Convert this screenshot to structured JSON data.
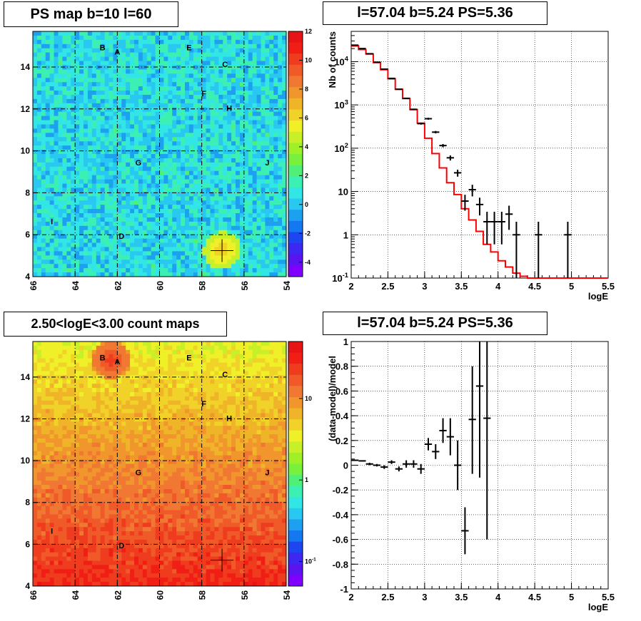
{
  "chart_data": [
    {
      "type": "heatmap",
      "title": "PS map b=10 l=60",
      "x_ticks": [
        "66",
        "64",
        "62",
        "60",
        "58",
        "56",
        "54"
      ],
      "xlim": [
        66,
        54
      ],
      "y_ticks": [
        "4",
        "6",
        "8",
        "10",
        "12",
        "14"
      ],
      "ylim": [
        4,
        15.7
      ],
      "grid": true,
      "colorscale": {
        "ticks": [
          "12",
          "10",
          "8",
          "6",
          "4",
          "2",
          "0",
          "-2",
          "-4"
        ],
        "range": [
          -5,
          12
        ],
        "scale": "linear"
      },
      "source_labels": [
        {
          "text": "B",
          "l": 62.7,
          "b": 14.8
        },
        {
          "text": "A",
          "l": 62.0,
          "b": 14.6
        },
        {
          "text": "E",
          "l": 58.6,
          "b": 14.8
        },
        {
          "text": "C",
          "l": 56.9,
          "b": 14.0
        },
        {
          "text": "F",
          "l": 57.9,
          "b": 12.6
        },
        {
          "text": "H",
          "l": 56.7,
          "b": 11.9
        },
        {
          "text": "G",
          "l": 61.0,
          "b": 9.3
        },
        {
          "text": "J",
          "l": 54.9,
          "b": 9.3
        },
        {
          "text": "I",
          "l": 65.1,
          "b": 6.5
        },
        {
          "text": "D",
          "l": 61.8,
          "b": 5.8
        }
      ],
      "marker": {
        "l": 57.04,
        "b": 5.24
      }
    },
    {
      "type": "line",
      "title": "l=57.04 b=5.24 PS=5.36",
      "xlabel": "logE",
      "ylabel": "Nb of counts",
      "xlim": [
        2,
        5.5
      ],
      "ylim": [
        0.1,
        50000
      ],
      "yscale": "log",
      "x_ticks": [
        "2",
        "2.5",
        "3",
        "3.5",
        "4",
        "4.5",
        "5",
        "5.5"
      ],
      "y_ticks": [
        "10^{-1}",
        "1",
        "10",
        "10^{2}",
        "10^{3}",
        "10^{4}"
      ],
      "grid": true,
      "series": [
        {
          "color": "#ff0000",
          "kind": "step",
          "bin_edges": [
            2,
            2.1,
            2.2,
            2.3,
            2.4,
            2.5,
            2.6,
            2.7,
            2.8,
            2.9,
            3.0,
            3.1,
            3.2,
            3.3,
            3.4,
            3.5,
            3.6,
            3.7,
            3.8,
            3.9,
            4.0,
            4.1,
            4.2,
            4.3,
            4.4,
            4.5,
            4.6,
            4.7,
            4.8,
            4.9,
            5.0,
            5.1,
            5.2,
            5.3,
            5.4,
            5.5
          ],
          "values": [
            23000,
            19000,
            15000,
            9500,
            6500,
            4000,
            2300,
            1400,
            780,
            380,
            170,
            75,
            35,
            16,
            8.5,
            4,
            2.2,
            1.2,
            0.6,
            0.4,
            0.25,
            0.18,
            0.13,
            0.11,
            0.1,
            0.1,
            0.1,
            0.1,
            0.1,
            0.1,
            0.1,
            0.1,
            0.1,
            0.1,
            0.1
          ]
        },
        {
          "color": "#000000",
          "kind": "errorbars",
          "points": [
            {
              "x": 2.05,
              "y": 24000,
              "lo": 23700,
              "hi": 24300
            },
            {
              "x": 2.15,
              "y": 20000,
              "lo": 19700,
              "hi": 20300
            },
            {
              "x": 2.25,
              "y": 15200,
              "lo": 15000,
              "hi": 15400
            },
            {
              "x": 2.35,
              "y": 9700,
              "lo": 9500,
              "hi": 9900
            },
            {
              "x": 2.45,
              "y": 6700,
              "lo": 6500,
              "hi": 6900
            },
            {
              "x": 2.55,
              "y": 4100,
              "lo": 4000,
              "hi": 4200
            },
            {
              "x": 2.65,
              "y": 2300,
              "lo": 2250,
              "hi": 2350
            },
            {
              "x": 2.75,
              "y": 1420,
              "lo": 1380,
              "hi": 1460
            },
            {
              "x": 2.85,
              "y": 790,
              "lo": 760,
              "hi": 820
            },
            {
              "x": 2.95,
              "y": 370,
              "lo": 350,
              "hi": 390
            },
            {
              "x": 3.05,
              "y": 480,
              "lo": 455,
              "hi": 505
            },
            {
              "x": 3.15,
              "y": 235,
              "lo": 220,
              "hi": 250
            },
            {
              "x": 3.25,
              "y": 115,
              "lo": 105,
              "hi": 125
            },
            {
              "x": 3.35,
              "y": 60,
              "lo": 52,
              "hi": 68
            },
            {
              "x": 3.45,
              "y": 27,
              "lo": 22,
              "hi": 32
            },
            {
              "x": 3.55,
              "y": 6,
              "lo": 3.6,
              "hi": 8.4
            },
            {
              "x": 3.65,
              "y": 11,
              "lo": 7.7,
              "hi": 14.3
            },
            {
              "x": 3.75,
              "y": 5,
              "lo": 2.8,
              "hi": 7.2
            },
            {
              "x": 3.85,
              "y": 2,
              "lo": 0.6,
              "hi": 3.4
            },
            {
              "x": 3.95,
              "y": 2,
              "lo": 0.6,
              "hi": 3.4
            },
            {
              "x": 4.05,
              "y": 2,
              "lo": 0.6,
              "hi": 3.4
            },
            {
              "x": 4.15,
              "y": 3,
              "lo": 1.3,
              "hi": 4.7
            },
            {
              "x": 4.25,
              "y": 1,
              "lo": 0.1,
              "hi": 2.0
            },
            {
              "x": 4.55,
              "y": 1,
              "lo": 0.1,
              "hi": 2.0
            },
            {
              "x": 4.95,
              "y": 1,
              "lo": 0.1,
              "hi": 2.0
            }
          ]
        }
      ]
    },
    {
      "type": "heatmap",
      "title": "2.50<logE<3.00 count maps",
      "x_ticks": [
        "66",
        "64",
        "62",
        "60",
        "58",
        "56",
        "54"
      ],
      "xlim": [
        66,
        54
      ],
      "y_ticks": [
        "4",
        "6",
        "8",
        "10",
        "12",
        "14"
      ],
      "ylim": [
        4,
        15.7
      ],
      "grid": true,
      "colorscale": {
        "ticks": [
          "10",
          "1",
          "10^{-1}"
        ],
        "range": [
          0.05,
          50
        ],
        "scale": "log"
      },
      "source_labels": [
        {
          "text": "B",
          "l": 62.7,
          "b": 14.8
        },
        {
          "text": "A",
          "l": 62.0,
          "b": 14.6
        },
        {
          "text": "E",
          "l": 58.6,
          "b": 14.8
        },
        {
          "text": "C",
          "l": 56.9,
          "b": 14.0
        },
        {
          "text": "F",
          "l": 57.9,
          "b": 12.6
        },
        {
          "text": "H",
          "l": 56.7,
          "b": 11.9
        },
        {
          "text": "G",
          "l": 61.0,
          "b": 9.3
        },
        {
          "text": "J",
          "l": 54.9,
          "b": 9.3
        },
        {
          "text": "I",
          "l": 65.1,
          "b": 6.5
        },
        {
          "text": "D",
          "l": 61.8,
          "b": 5.8
        }
      ],
      "marker": {
        "l": 57.04,
        "b": 5.24
      }
    },
    {
      "type": "scatter",
      "title": "l=57.04 b=5.24 PS=5.36",
      "xlabel": "logE",
      "ylabel": "(data-model)/model",
      "xlim": [
        2,
        5.5
      ],
      "ylim": [
        -1,
        1
      ],
      "x_ticks": [
        "2",
        "2.5",
        "3",
        "3.5",
        "4",
        "4.5",
        "5",
        "5.5"
      ],
      "y_ticks": [
        "-1",
        "-0.8",
        "-0.6",
        "-0.4",
        "-0.2",
        "0",
        "0.2",
        "0.4",
        "0.6",
        "0.8",
        "1"
      ],
      "grid": true,
      "points": [
        {
          "x": 2.05,
          "y": 0.04,
          "lo": 0.035,
          "hi": 0.045
        },
        {
          "x": 2.15,
          "y": 0.035,
          "lo": 0.03,
          "hi": 0.04
        },
        {
          "x": 2.25,
          "y": 0.01,
          "lo": 0.0,
          "hi": 0.02
        },
        {
          "x": 2.35,
          "y": 0.0,
          "lo": -0.01,
          "hi": 0.01
        },
        {
          "x": 2.45,
          "y": -0.015,
          "lo": -0.03,
          "hi": 0.0
        },
        {
          "x": 2.55,
          "y": 0.025,
          "lo": 0.01,
          "hi": 0.04
        },
        {
          "x": 2.65,
          "y": -0.03,
          "lo": -0.05,
          "hi": -0.01
        },
        {
          "x": 2.75,
          "y": 0.01,
          "lo": -0.02,
          "hi": 0.04
        },
        {
          "x": 2.85,
          "y": 0.01,
          "lo": -0.02,
          "hi": 0.04
        },
        {
          "x": 2.95,
          "y": -0.03,
          "lo": -0.07,
          "hi": 0.01
        },
        {
          "x": 3.05,
          "y": 0.17,
          "lo": 0.12,
          "hi": 0.22
        },
        {
          "x": 3.15,
          "y": 0.11,
          "lo": 0.05,
          "hi": 0.17
        },
        {
          "x": 3.25,
          "y": 0.28,
          "lo": 0.18,
          "hi": 0.38
        },
        {
          "x": 3.35,
          "y": 0.23,
          "lo": 0.08,
          "hi": 0.38
        },
        {
          "x": 3.45,
          "y": 0.0,
          "lo": -0.2,
          "hi": 0.2
        },
        {
          "x": 3.55,
          "y": -0.53,
          "lo": -0.72,
          "hi": -0.34
        },
        {
          "x": 3.65,
          "y": 0.37,
          "lo": -0.07,
          "hi": 0.8
        },
        {
          "x": 3.75,
          "y": 0.64,
          "lo": -0.1,
          "hi": 1.0
        },
        {
          "x": 3.85,
          "y": 0.38,
          "lo": -0.6,
          "hi": 1.0
        }
      ]
    }
  ]
}
